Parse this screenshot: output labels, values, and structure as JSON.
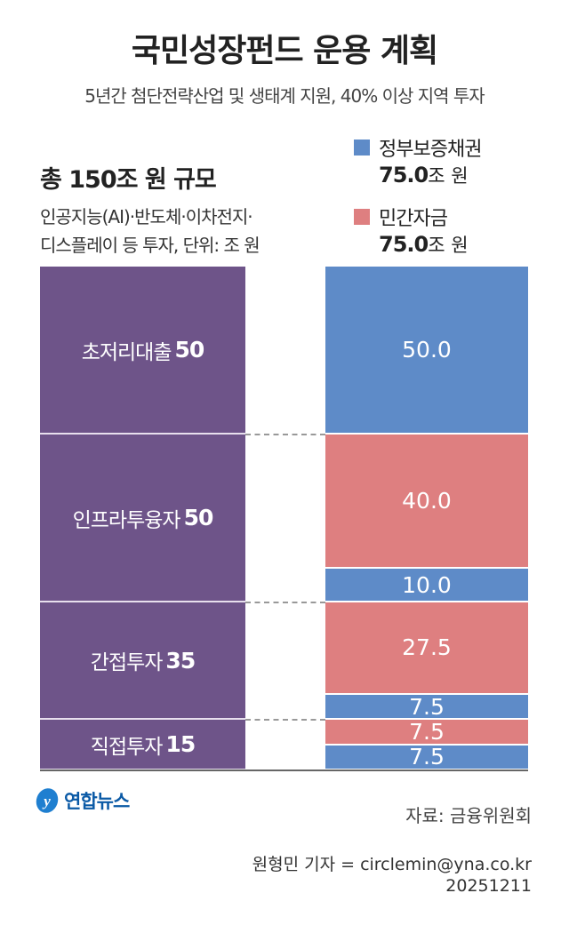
{
  "title": "국민성장펀드 운용 계획",
  "subtitle": "5년간 첨단전략산업 및 생태계 지원, 40% 이상 지역 투자",
  "summary": {
    "total": "총 150조 원 규모",
    "desc_line1": "인공지능(AI)·반도체·이차전지·",
    "desc_line2": "디스플레이 등 투자, 단위: 조 원"
  },
  "chart_data": {
    "type": "bar",
    "stacked": true,
    "unit": "조 원",
    "total": 150,
    "legend": [
      {
        "name": "정부보증채권",
        "value": "75.0",
        "unit": "조 원",
        "color": "#5e8bc8"
      },
      {
        "name": "민간자금",
        "value": "75.0",
        "unit": "조 원",
        "color": "#de7f80"
      }
    ],
    "left_bar": {
      "color": "#6e5489",
      "segments": [
        {
          "label": "초저리대출",
          "value": 50
        },
        {
          "label": "인프라투융자",
          "value": 50
        },
        {
          "label": "간접투자",
          "value": 35
        },
        {
          "label": "직접투자",
          "value": 15
        }
      ]
    },
    "right_bar": {
      "segments": [
        {
          "series": "정부보증채권",
          "value": 50,
          "label": "50.0"
        },
        {
          "series": "민간자금",
          "value": 40,
          "label": "40.0"
        },
        {
          "series": "정부보증채권",
          "value": 10,
          "label": "10.0"
        },
        {
          "series": "민간자금",
          "value": 27.5,
          "label": "27.5"
        },
        {
          "series": "정부보증채권",
          "value": 7.5,
          "label": "7.5"
        },
        {
          "series": "민간자금",
          "value": 7.5,
          "label": "7.5"
        },
        {
          "series": "정부보증채권",
          "value": 7.5,
          "label": "7.5"
        }
      ]
    }
  },
  "footer": {
    "logo": "연합뉴스",
    "source": "자료: 금융위원회",
    "credit": "원형민 기자 = circlemin@yna.co.kr",
    "date": "20251211"
  }
}
